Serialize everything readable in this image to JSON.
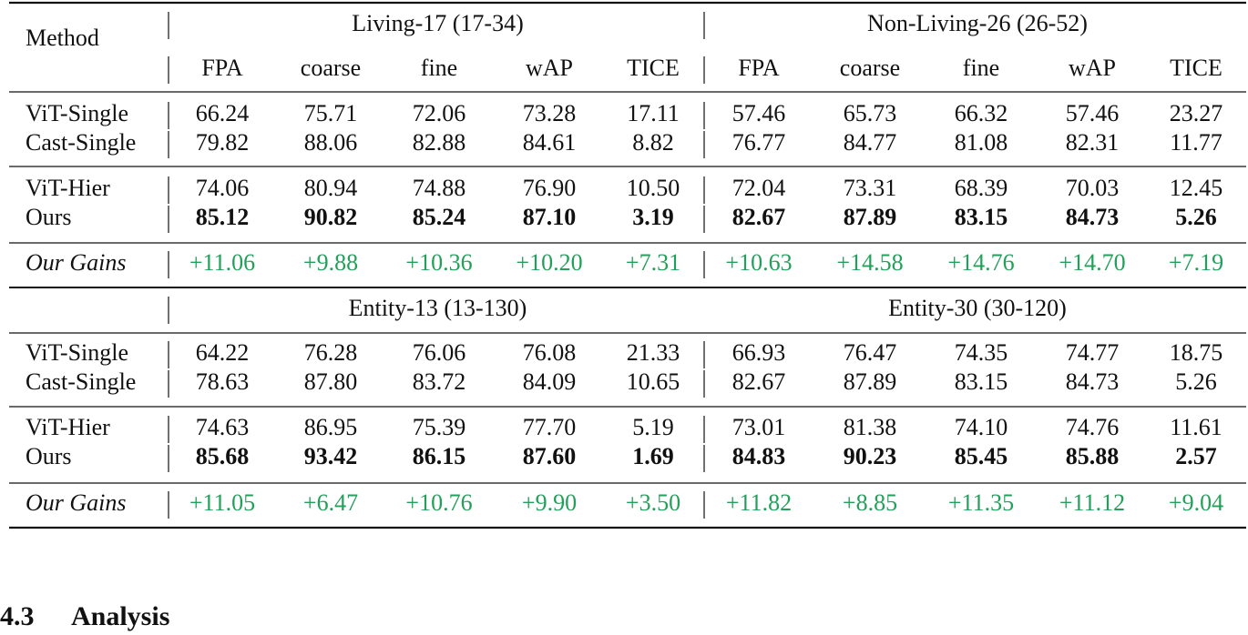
{
  "method_header": "Method",
  "metrics": [
    "FPA",
    "coarse",
    "fine",
    "wAP",
    "TICE"
  ],
  "gain_color": "#22a05a",
  "blocks": [
    {
      "datasets": [
        "Living-17 (17-34)",
        "Non-Living-26 (26-52)"
      ],
      "groups": [
        [
          {
            "method": "ViT-Single",
            "bold": false,
            "values": [
              "66.24",
              "75.71",
              "72.06",
              "73.28",
              "17.11",
              "57.46",
              "65.73",
              "66.32",
              "57.46",
              "23.27"
            ]
          },
          {
            "method": "Cast-Single",
            "bold": false,
            "values": [
              "79.82",
              "88.06",
              "82.88",
              "84.61",
              "8.82",
              "76.77",
              "84.77",
              "81.08",
              "82.31",
              "11.77"
            ]
          }
        ],
        [
          {
            "method": "ViT-Hier",
            "bold": false,
            "values": [
              "74.06",
              "80.94",
              "74.88",
              "76.90",
              "10.50",
              "72.04",
              "73.31",
              "68.39",
              "70.03",
              "12.45"
            ]
          },
          {
            "method": "Ours",
            "bold": true,
            "values": [
              "85.12",
              "90.82",
              "85.24",
              "87.10",
              "3.19",
              "82.67",
              "87.89",
              "83.15",
              "84.73",
              "5.26"
            ]
          }
        ]
      ],
      "gains": {
        "label": "Our Gains",
        "values": [
          "+11.06",
          "+9.88",
          "+10.36",
          "+10.20",
          "+7.31",
          "+10.63",
          "+14.58",
          "+14.76",
          "+14.70",
          "+7.19"
        ]
      }
    },
    {
      "datasets": [
        "Entity-13 (13-130)",
        "Entity-30 (30-120)"
      ],
      "groups": [
        [
          {
            "method": "ViT-Single",
            "bold": false,
            "values": [
              "64.22",
              "76.28",
              "76.06",
              "76.08",
              "21.33",
              "66.93",
              "76.47",
              "74.35",
              "74.77",
              "18.75"
            ]
          },
          {
            "method": "Cast-Single",
            "bold": false,
            "values": [
              "78.63",
              "87.80",
              "83.72",
              "84.09",
              "10.65",
              "82.67",
              "87.89",
              "83.15",
              "84.73",
              "5.26"
            ]
          }
        ],
        [
          {
            "method": "ViT-Hier",
            "bold": false,
            "values": [
              "74.63",
              "86.95",
              "75.39",
              "77.70",
              "5.19",
              "73.01",
              "81.38",
              "74.10",
              "74.76",
              "11.61"
            ]
          },
          {
            "method": "Ours",
            "bold": true,
            "values": [
              "85.68",
              "93.42",
              "86.15",
              "87.60",
              "1.69",
              "84.83",
              "90.23",
              "85.45",
              "85.88",
              "2.57"
            ]
          }
        ]
      ],
      "gains": {
        "label": "Our Gains",
        "values": [
          "+11.05",
          "+6.47",
          "+10.76",
          "+9.90",
          "+3.50",
          "+11.82",
          "+8.85",
          "+11.35",
          "+11.12",
          "+9.04"
        ]
      }
    }
  ],
  "section": {
    "number": "4.3",
    "title": "Analysis"
  }
}
